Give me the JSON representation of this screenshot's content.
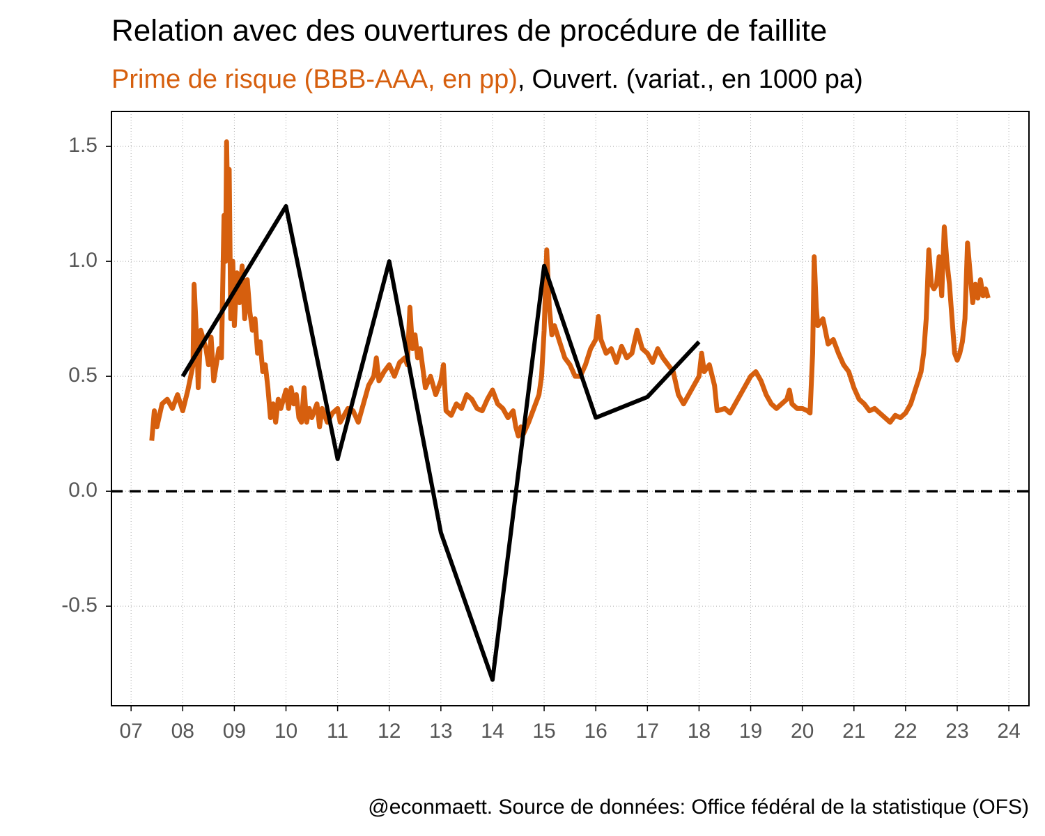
{
  "chart_data": {
    "type": "line",
    "title": "Relation avec des ouvertures de procédure de faillite",
    "legend_separator": ",",
    "source": "@econmaett. Source de données: Office fédéral de la statistique (OFS)",
    "xlim": [
      2006.62,
      2024.39
    ],
    "xticks": [
      {
        "value": 2007,
        "label": "07"
      },
      {
        "value": 2008,
        "label": "08"
      },
      {
        "value": 2009,
        "label": "09"
      },
      {
        "value": 2010,
        "label": "10"
      },
      {
        "value": 2011,
        "label": "11"
      },
      {
        "value": 2012,
        "label": "12"
      },
      {
        "value": 2013,
        "label": "13"
      },
      {
        "value": 2014,
        "label": "14"
      },
      {
        "value": 2015,
        "label": "15"
      },
      {
        "value": 2016,
        "label": "16"
      },
      {
        "value": 2017,
        "label": "17"
      },
      {
        "value": 2018,
        "label": "18"
      },
      {
        "value": 2019,
        "label": "19"
      },
      {
        "value": 2020,
        "label": "20"
      },
      {
        "value": 2021,
        "label": "21"
      },
      {
        "value": 2022,
        "label": "22"
      },
      {
        "value": 2023,
        "label": "23"
      },
      {
        "value": 2024,
        "label": "24"
      }
    ],
    "ylim": [
      -0.933,
      1.652
    ],
    "yticks": [
      {
        "value": -0.5,
        "label": "-0.5"
      },
      {
        "value": 0,
        "label": "0.0"
      },
      0.5,
      {
        "value": 1,
        "label": "1.0"
      },
      1.5
    ],
    "grid": true,
    "reference_line": 0,
    "series": [
      {
        "name": "Prime de risque (BBB-AAA, en pp)",
        "color": "#d65f0e",
        "x": [
          2007.4,
          2007.45,
          2007.5,
          2007.6,
          2007.7,
          2007.8,
          2007.9,
          2008.0,
          2008.1,
          2008.2,
          2008.22,
          2008.28,
          2008.3,
          2008.35,
          2008.45,
          2008.5,
          2008.55,
          2008.6,
          2008.7,
          2008.75,
          2008.8,
          2008.83,
          2008.85,
          2008.88,
          2008.9,
          2008.93,
          2008.97,
          2009.0,
          2009.05,
          2009.1,
          2009.15,
          2009.2,
          2009.25,
          2009.3,
          2009.35,
          2009.4,
          2009.45,
          2009.5,
          2009.55,
          2009.6,
          2009.65,
          2009.7,
          2009.75,
          2009.8,
          2009.85,
          2009.9,
          2010.0,
          2010.05,
          2010.1,
          2010.15,
          2010.2,
          2010.25,
          2010.3,
          2010.35,
          2010.4,
          2010.45,
          2010.5,
          2010.6,
          2010.65,
          2010.7,
          2010.8,
          2010.9,
          2011.0,
          2011.05,
          2011.1,
          2011.2,
          2011.3,
          2011.4,
          2011.5,
          2011.6,
          2011.7,
          2011.75,
          2011.8,
          2011.9,
          2012.0,
          2012.1,
          2012.2,
          2012.3,
          2012.35,
          2012.4,
          2012.45,
          2012.5,
          2012.55,
          2012.6,
          2012.7,
          2012.8,
          2012.9,
          2013.0,
          2013.05,
          2013.1,
          2013.2,
          2013.3,
          2013.4,
          2013.5,
          2013.6,
          2013.7,
          2013.8,
          2013.9,
          2014.0,
          2014.1,
          2014.2,
          2014.3,
          2014.4,
          2014.45,
          2014.5,
          2014.55,
          2014.6,
          2014.7,
          2014.8,
          2014.9,
          2014.95,
          2015.0,
          2015.05,
          2015.1,
          2015.15,
          2015.2,
          2015.3,
          2015.4,
          2015.5,
          2015.6,
          2015.7,
          2015.8,
          2015.9,
          2016.0,
          2016.05,
          2016.1,
          2016.2,
          2016.3,
          2016.4,
          2016.5,
          2016.6,
          2016.7,
          2016.8,
          2016.9,
          2017.0,
          2017.1,
          2017.2,
          2017.3,
          2017.4,
          2017.5,
          2017.6,
          2017.7,
          2017.8,
          2017.9,
          2018.0,
          2018.05,
          2018.1,
          2018.2,
          2018.3,
          2018.35,
          2018.5,
          2018.6,
          2018.7,
          2018.8,
          2018.9,
          2019.0,
          2019.1,
          2019.2,
          2019.3,
          2019.4,
          2019.5,
          2019.6,
          2019.7,
          2019.75,
          2019.8,
          2019.9,
          2020.0,
          2020.1,
          2020.15,
          2020.2,
          2020.23,
          2020.27,
          2020.3,
          2020.4,
          2020.5,
          2020.6,
          2020.7,
          2020.8,
          2020.9,
          2021.0,
          2021.1,
          2021.2,
          2021.3,
          2021.4,
          2021.5,
          2021.6,
          2021.7,
          2021.8,
          2021.9,
          2022.0,
          2022.1,
          2022.2,
          2022.3,
          2022.35,
          2022.4,
          2022.45,
          2022.5,
          2022.55,
          2022.6,
          2022.65,
          2022.7,
          2022.75,
          2022.8,
          2022.85,
          2022.9,
          2022.95,
          2023.0,
          2023.05,
          2023.1,
          2023.15,
          2023.2,
          2023.25,
          2023.3,
          2023.35,
          2023.4,
          2023.45,
          2023.5,
          2023.55,
          2023.6
        ],
        "values": [
          0.22,
          0.35,
          0.28,
          0.38,
          0.4,
          0.36,
          0.42,
          0.35,
          0.44,
          0.55,
          0.9,
          0.62,
          0.45,
          0.7,
          0.62,
          0.55,
          0.67,
          0.48,
          0.62,
          0.58,
          1.2,
          1.0,
          1.52,
          1.1,
          1.4,
          0.75,
          1.0,
          0.72,
          0.95,
          0.82,
          0.98,
          0.75,
          0.92,
          0.78,
          0.7,
          0.75,
          0.6,
          0.65,
          0.52,
          0.55,
          0.45,
          0.32,
          0.38,
          0.3,
          0.4,
          0.36,
          0.44,
          0.36,
          0.45,
          0.38,
          0.42,
          0.32,
          0.3,
          0.45,
          0.3,
          0.36,
          0.32,
          0.38,
          0.28,
          0.36,
          0.3,
          0.34,
          0.36,
          0.3,
          0.32,
          0.36,
          0.35,
          0.3,
          0.38,
          0.46,
          0.5,
          0.58,
          0.48,
          0.52,
          0.55,
          0.5,
          0.56,
          0.58,
          0.55,
          0.8,
          0.62,
          0.68,
          0.58,
          0.62,
          0.45,
          0.5,
          0.42,
          0.48,
          0.55,
          0.35,
          0.33,
          0.38,
          0.36,
          0.42,
          0.4,
          0.36,
          0.35,
          0.4,
          0.44,
          0.38,
          0.36,
          0.32,
          0.35,
          0.28,
          0.24,
          0.28,
          0.25,
          0.3,
          0.36,
          0.42,
          0.5,
          0.7,
          1.05,
          0.8,
          0.68,
          0.72,
          0.65,
          0.58,
          0.55,
          0.5,
          0.5,
          0.55,
          0.62,
          0.66,
          0.76,
          0.66,
          0.6,
          0.62,
          0.56,
          0.63,
          0.58,
          0.6,
          0.7,
          0.62,
          0.6,
          0.56,
          0.62,
          0.58,
          0.55,
          0.52,
          0.42,
          0.38,
          0.42,
          0.46,
          0.5,
          0.6,
          0.52,
          0.55,
          0.46,
          0.35,
          0.36,
          0.34,
          0.38,
          0.42,
          0.46,
          0.5,
          0.52,
          0.48,
          0.42,
          0.38,
          0.36,
          0.38,
          0.4,
          0.44,
          0.38,
          0.36,
          0.36,
          0.35,
          0.34,
          0.6,
          1.02,
          0.8,
          0.72,
          0.75,
          0.64,
          0.66,
          0.6,
          0.55,
          0.52,
          0.45,
          0.4,
          0.38,
          0.35,
          0.36,
          0.34,
          0.32,
          0.3,
          0.33,
          0.32,
          0.34,
          0.38,
          0.45,
          0.52,
          0.6,
          0.75,
          1.05,
          0.9,
          0.88,
          0.9,
          1.02,
          0.85,
          1.15,
          1.0,
          0.9,
          0.75,
          0.6,
          0.57,
          0.6,
          0.65,
          0.75,
          1.08,
          0.95,
          0.82,
          0.9,
          0.84,
          0.92,
          0.85,
          0.88,
          0.84
        ]
      },
      {
        "name": "Ouvert. (variat., en 1000 pa)",
        "color": "#000000",
        "x": [
          2008,
          2010,
          2011,
          2012,
          2013,
          2014,
          2015,
          2016,
          2017,
          2018
        ],
        "values": [
          0.5,
          1.24,
          0.14,
          1.0,
          -0.18,
          -0.82,
          0.98,
          0.32,
          0.41,
          0.65
        ]
      }
    ]
  }
}
